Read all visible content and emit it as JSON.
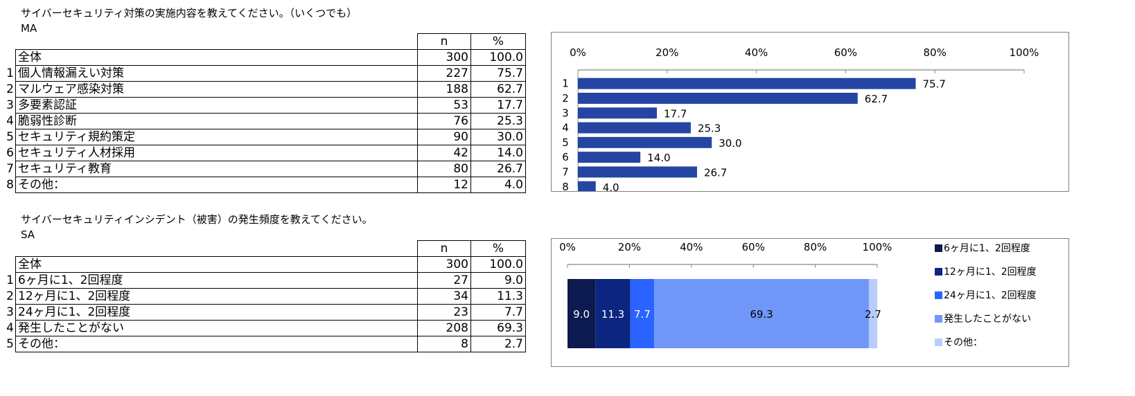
{
  "q1": {
    "title": "サイバーセキュリティ対策の実施内容を教えてください。（いくつでも）",
    "type": "MA",
    "header": {
      "n": "n",
      "pct": "%"
    },
    "total": {
      "label": "全体",
      "n": "300",
      "pct": "100.0"
    },
    "rows": [
      {
        "no": "1",
        "label": "個人情報漏えい対策",
        "n": "227",
        "pct": "75.7"
      },
      {
        "no": "2",
        "label": "マルウェア感染対策",
        "n": "188",
        "pct": "62.7"
      },
      {
        "no": "3",
        "label": "多要素認証",
        "n": "53",
        "pct": "17.7"
      },
      {
        "no": "4",
        "label": "脆弱性診断",
        "n": "76",
        "pct": "25.3"
      },
      {
        "no": "5",
        "label": "セキュリティ規約策定",
        "n": "90",
        "pct": "30.0"
      },
      {
        "no": "6",
        "label": "セキュリティ人材採用",
        "n": "42",
        "pct": "14.0"
      },
      {
        "no": "7",
        "label": "セキュリティ教育",
        "n": "80",
        "pct": "26.7"
      },
      {
        "no": "8",
        "label": "その他：",
        "n": "12",
        "pct": "4.0"
      }
    ]
  },
  "q2": {
    "title": "サイバーセキュリティインシデント（被害）の発生頻度を教えてください。",
    "type": "SA",
    "header": {
      "n": "n",
      "pct": "%"
    },
    "total": {
      "label": "全体",
      "n": "300",
      "pct": "100.0"
    },
    "rows": [
      {
        "no": "1",
        "label": "6ヶ月に1、2回程度",
        "n": "27",
        "pct": "9.0"
      },
      {
        "no": "2",
        "label": "12ヶ月に1、2回程度",
        "n": "34",
        "pct": "11.3"
      },
      {
        "no": "3",
        "label": "24ヶ月に1、2回程度",
        "n": "23",
        "pct": "7.7"
      },
      {
        "no": "4",
        "label": "発生したことがない",
        "n": "208",
        "pct": "69.3"
      },
      {
        "no": "5",
        "label": "その他：",
        "n": "8",
        "pct": "2.7"
      }
    ]
  },
  "chart_data": [
    {
      "type": "bar",
      "orientation": "horizontal",
      "categories": [
        "1",
        "2",
        "3",
        "4",
        "5",
        "6",
        "7",
        "8"
      ],
      "values": [
        75.7,
        62.7,
        17.7,
        25.3,
        30.0,
        14.0,
        26.7,
        4.0
      ],
      "value_labels": [
        "75.7",
        "62.7",
        "17.7",
        "25.3",
        "30.0",
        "14.0",
        "26.7",
        "4.0"
      ],
      "xlim": [
        0,
        100
      ],
      "ticks": [
        "0%",
        "20%",
        "40%",
        "60%",
        "80%",
        "100%"
      ],
      "axis_position": "top",
      "grid": false,
      "color": "#2445a3"
    },
    {
      "type": "bar",
      "orientation": "horizontal",
      "stacked": true,
      "xlim": [
        0,
        100
      ],
      "ticks": [
        "0%",
        "20%",
        "40%",
        "60%",
        "80%",
        "100%"
      ],
      "axis_position": "top",
      "legend_position": "right",
      "series": [
        {
          "name": "6ヶ月に1、2回程度",
          "value": 9.0,
          "label": "9.0",
          "color": "#0c1a4f",
          "label_color": "#ffffff"
        },
        {
          "name": "12ヶ月に1、2回程度",
          "value": 11.3,
          "label": "11.3",
          "color": "#0b2580",
          "label_color": "#ffffff"
        },
        {
          "name": "24ヶ月に1、2回程度",
          "value": 7.7,
          "label": "7.7",
          "color": "#2a63ff",
          "label_color": "#ffffff"
        },
        {
          "name": "発生したことがない",
          "value": 69.3,
          "label": "69.3",
          "color": "#7096f8",
          "label_color": "#000000"
        },
        {
          "name": "その他：",
          "value": 2.7,
          "label": "2.7",
          "color": "#b8cdfb",
          "label_color": "#000000"
        }
      ]
    }
  ]
}
